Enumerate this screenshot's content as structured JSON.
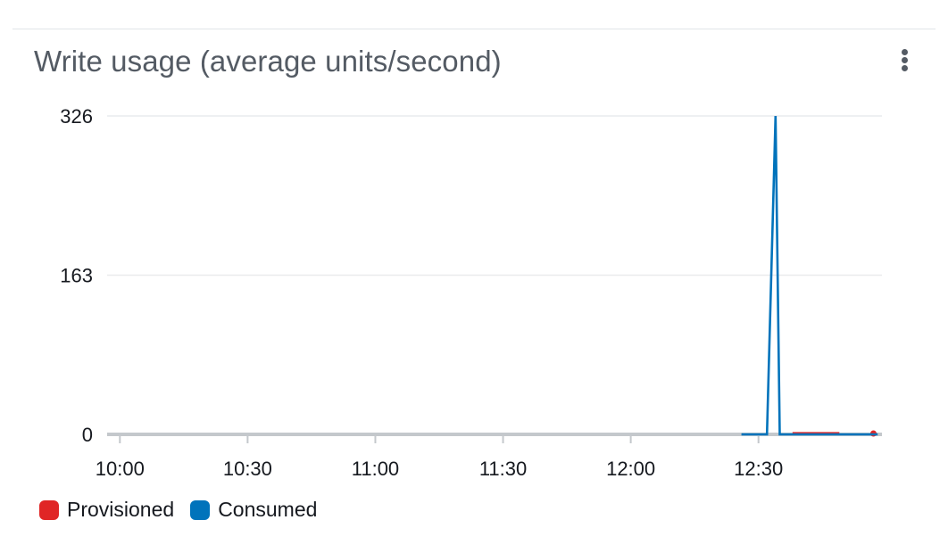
{
  "widget": {
    "title": "Write usage (average units/second)",
    "menu_icon": "vertical-ellipsis-icon"
  },
  "chart_data": {
    "type": "line",
    "title": "Write usage (average units/second)",
    "xlabel": "",
    "ylabel": "",
    "x_ticks": [
      "10:00",
      "10:30",
      "11:00",
      "11:30",
      "12:00",
      "12:30"
    ],
    "x_range": [
      "09:57",
      "12:59"
    ],
    "y_ticks": [
      0,
      163,
      326
    ],
    "ylim": [
      0,
      326
    ],
    "grid": true,
    "legend_position": "bottom-left",
    "series": [
      {
        "name": "Provisioned",
        "color": "#e02626",
        "segments": [
          [
            [
              "12:38",
              1
            ],
            [
              "12:49",
              1
            ]
          ],
          [
            [
              "12:57",
              0
            ],
            [
              "12:57",
              0
            ]
          ]
        ]
      },
      {
        "name": "Consumed",
        "color": "#0073bb",
        "segments": [
          [
            [
              "12:26",
              0
            ],
            [
              "12:32",
              0
            ],
            [
              "12:34",
              326
            ],
            [
              "12:35",
              0
            ],
            [
              "12:58",
              0
            ]
          ]
        ]
      }
    ]
  }
}
